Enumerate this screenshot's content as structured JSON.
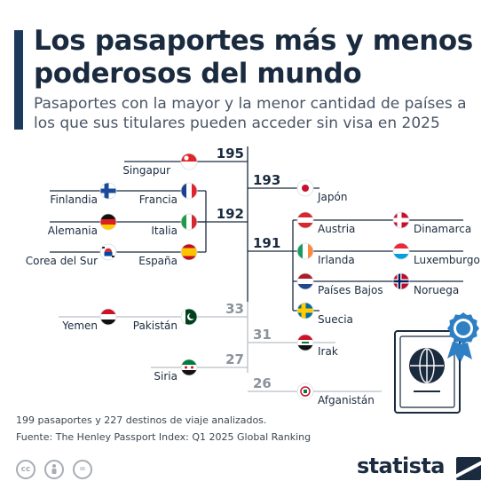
{
  "title": "Los pasaportes más y menos poderosos del mundo",
  "subtitle": "Pasaportes con la mayor y la menor cantidad de países a los que sus titulares pueden acceder sin visa en 2025",
  "chart_data": {
    "type": "bracket",
    "title": "Los pasaportes más y menos poderosos del mundo",
    "value_unit": "países accesibles sin visa",
    "groups": [
      {
        "value": 195,
        "tier": "top",
        "countries": [
          "Singapur"
        ]
      },
      {
        "value": 193,
        "tier": "top",
        "countries": [
          "Japón"
        ]
      },
      {
        "value": 192,
        "tier": "top",
        "countries": [
          "Finlandia",
          "Francia",
          "Alemania",
          "Italia",
          "Corea del Sur",
          "España"
        ]
      },
      {
        "value": 191,
        "tier": "top",
        "countries": [
          "Austria",
          "Dinamarca",
          "Irlanda",
          "Luxemburgo",
          "Países Bajos",
          "Noruega",
          "Suecia"
        ]
      },
      {
        "value": 33,
        "tier": "bottom",
        "countries": [
          "Yemen",
          "Pakistán"
        ]
      },
      {
        "value": 31,
        "tier": "bottom",
        "countries": [
          "Irak"
        ]
      },
      {
        "value": 27,
        "tier": "bottom",
        "countries": [
          "Siria"
        ]
      },
      {
        "value": 26,
        "tier": "bottom",
        "countries": [
          "Afganistán"
        ]
      }
    ]
  },
  "notes": {
    "count": "199 pasaportes y 227 destinos de viaje analizados.",
    "source": "Fuente: The Henley Passport Index: Q1 2025 Global Ranking"
  },
  "license_icons": [
    "cc-icon",
    "person-icon",
    "equal-icon"
  ],
  "license_labels": [
    "cc",
    "",
    "="
  ],
  "brand": {
    "name": "statista",
    "color": "#1b2b3f"
  },
  "colors": {
    "top_value": "#1b2b3f",
    "bottom_value": "#8a939c",
    "line": "#1b2b3f",
    "line_light": "#b9bfc6",
    "accent": "#1b3a5c"
  }
}
